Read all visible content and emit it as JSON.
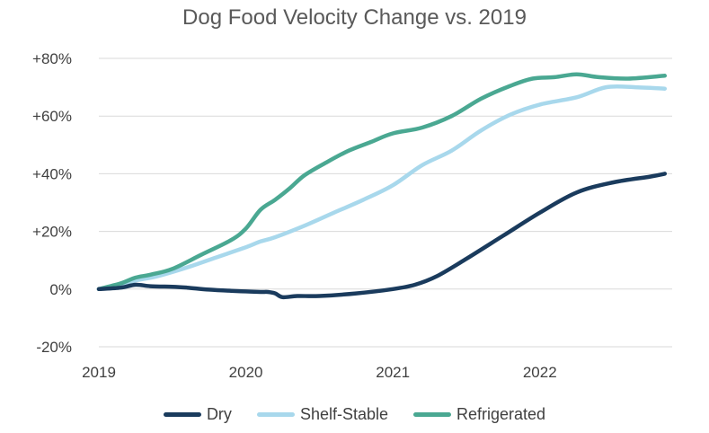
{
  "chart_data": {
    "type": "line",
    "title": "Dog Food Velocity Change vs. 2019",
    "xlabel": "",
    "ylabel": "",
    "xlim": [
      2019,
      2022.9
    ],
    "ylim": [
      -20,
      80
    ],
    "x_ticks": [
      2019,
      2020,
      2021,
      2022
    ],
    "x_tick_labels": [
      "2019",
      "2020",
      "2021",
      "2022"
    ],
    "y_ticks": [
      -20,
      0,
      20,
      40,
      60,
      80
    ],
    "y_tick_labels": [
      "-20%",
      "0%",
      "+20%",
      "+40%",
      "+60%",
      "+80%"
    ],
    "grid": "horizontal",
    "legend_position": "bottom",
    "series": [
      {
        "name": "Dry",
        "color": "#1a3b5d",
        "x": [
          2019.0,
          2019.15,
          2019.25,
          2019.35,
          2019.5,
          2019.6,
          2019.75,
          2019.9,
          2020.0,
          2020.1,
          2020.15,
          2020.2,
          2020.25,
          2020.35,
          2020.5,
          2020.75,
          2021.0,
          2021.15,
          2021.3,
          2021.5,
          2021.75,
          2022.0,
          2022.25,
          2022.5,
          2022.75,
          2022.85
        ],
        "y": [
          0,
          0.5,
          1.5,
          1.0,
          0.8,
          0.5,
          -0.2,
          -0.6,
          -0.8,
          -1.0,
          -1.0,
          -1.5,
          -2.8,
          -2.4,
          -2.4,
          -1.5,
          0.0,
          1.5,
          4.5,
          10.5,
          18.5,
          26.5,
          33.5,
          37.0,
          39.0,
          40.0
        ]
      },
      {
        "name": "Shelf-Stable",
        "color": "#a8d8ec",
        "x": [
          2019.0,
          2019.15,
          2019.25,
          2019.4,
          2019.6,
          2019.8,
          2020.0,
          2020.1,
          2020.2,
          2020.4,
          2020.6,
          2020.8,
          2021.0,
          2021.2,
          2021.4,
          2021.6,
          2021.8,
          2022.0,
          2022.25,
          2022.45,
          2022.65,
          2022.85
        ],
        "y": [
          0,
          1.5,
          3.0,
          4.5,
          7.5,
          11.0,
          14.5,
          16.5,
          18.0,
          22.0,
          26.5,
          31.0,
          36.0,
          43.0,
          48.0,
          55.0,
          60.5,
          64.0,
          66.5,
          70.0,
          70.0,
          69.5
        ]
      },
      {
        "name": "Refrigerated",
        "color": "#4aa892",
        "x": [
          2019.0,
          2019.15,
          2019.25,
          2019.35,
          2019.5,
          2019.7,
          2019.9,
          2020.0,
          2020.1,
          2020.2,
          2020.3,
          2020.4,
          2020.55,
          2020.7,
          2020.85,
          2021.0,
          2021.2,
          2021.4,
          2021.6,
          2021.8,
          2021.95,
          2022.1,
          2022.25,
          2022.4,
          2022.6,
          2022.85
        ],
        "y": [
          0,
          2.0,
          4.0,
          5.0,
          7.0,
          12.0,
          17.0,
          21.0,
          27.5,
          31.0,
          35.0,
          39.5,
          44.0,
          48.0,
          51.0,
          54.0,
          56.0,
          60.0,
          66.0,
          70.5,
          73.0,
          73.5,
          74.5,
          73.5,
          73.0,
          74.0
        ]
      }
    ]
  }
}
